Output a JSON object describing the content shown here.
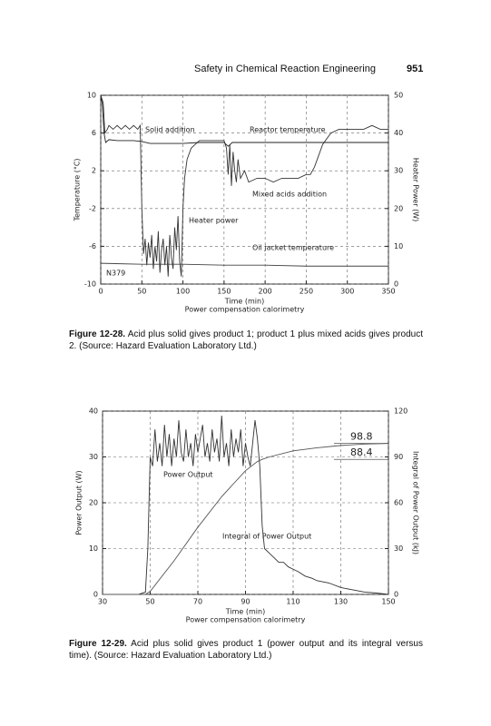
{
  "header": {
    "title": "Safety in Chemical Reaction Engineering",
    "page_number": "951"
  },
  "chart_data": [
    {
      "type": "line",
      "caption": {
        "label": "Figure 12-28.",
        "text": "Acid plus solid gives product 1; product 1 plus mixed acids gives product 2. (Source: Hazard Evaluation Laboratory Ltd.)"
      },
      "x_label": "Time (min)",
      "subtitle": "Power compensation calorimetry",
      "y_label": "Temperature (°C)",
      "y2_label": "Heater Power (W)",
      "xlim": [
        0,
        350
      ],
      "xticks": [
        0,
        50,
        100,
        150,
        200,
        250,
        300,
        350
      ],
      "ylim": [
        -10,
        10
      ],
      "yticks": [
        -10,
        -6,
        -2,
        2,
        6,
        10
      ],
      "y2lim": [
        0,
        50
      ],
      "y2ticks": [
        0,
        10,
        20,
        30,
        40,
        50
      ],
      "grid": true,
      "annotations": [
        "Solid addition",
        "Reactor temperature",
        "Mixed acids addition",
        "Heater power",
        "Oil jacket temperature",
        "N379"
      ],
      "series": [
        {
          "name": "Heater power",
          "axis": "y2",
          "color": "#333333",
          "x": [
            0,
            3,
            5,
            8,
            10,
            15,
            20,
            25,
            30,
            35,
            40,
            45,
            48,
            50,
            52,
            54,
            56,
            58,
            60,
            62,
            64,
            66,
            68,
            70,
            72,
            74,
            76,
            78,
            80,
            82,
            84,
            86,
            88,
            90,
            92,
            94,
            96,
            98,
            100,
            102,
            105,
            110,
            115,
            120,
            130,
            140,
            150,
            153,
            155,
            157,
            159,
            161,
            163,
            165,
            167,
            170,
            175,
            180,
            190,
            200,
            210,
            220,
            230,
            240,
            250,
            255,
            260,
            270,
            280,
            290,
            300,
            310,
            320,
            330,
            340,
            350
          ],
          "values": [
            50,
            48,
            40,
            41,
            42,
            41,
            42,
            41,
            42,
            41,
            42,
            41,
            42,
            20,
            8,
            12,
            5,
            11,
            7,
            13,
            4,
            10,
            6,
            14,
            3,
            9,
            12,
            5,
            10,
            2,
            13,
            7,
            4,
            15,
            9,
            18,
            6,
            2,
            20,
            28,
            33,
            36,
            37,
            38,
            38,
            38,
            38,
            36,
            29,
            37,
            26,
            35,
            30,
            27,
            33,
            28,
            30,
            27,
            28,
            28,
            27,
            28,
            28,
            28,
            29,
            29,
            31,
            37,
            40,
            41,
            41,
            41,
            41,
            42,
            41,
            41
          ]
        },
        {
          "name": "Reactor temperature",
          "axis": "y",
          "color": "#222222",
          "x": [
            0,
            2,
            4,
            6,
            10,
            20,
            30,
            40,
            50,
            60,
            80,
            100,
            120,
            140,
            150,
            155,
            160,
            170,
            180,
            200,
            250,
            300,
            350
          ],
          "values": [
            10,
            9,
            6,
            5,
            5.3,
            5.2,
            5.2,
            5.2,
            5.1,
            4.9,
            4.9,
            4.9,
            5,
            5,
            5,
            4.6,
            5,
            5,
            5,
            5,
            5,
            5,
            5
          ]
        },
        {
          "name": "Oil jacket temperature",
          "axis": "y",
          "color": "#444444",
          "x": [
            0,
            50,
            100,
            150,
            200,
            250,
            300,
            350
          ],
          "values": [
            -7.8,
            -7.9,
            -7.9,
            -8,
            -8,
            -8.1,
            -8.1,
            -8.1
          ]
        }
      ]
    },
    {
      "type": "line",
      "caption": {
        "label": "Figure 12-29.",
        "text": "Acid plus solid gives product 1 (power output and its integral versus time). (Source: Hazard Evaluation Laboratory Ltd.)"
      },
      "x_label": "Time (min)",
      "subtitle": "Power compensation calorimetry",
      "y_label": "Power Output (W)",
      "y2_label": "Integral of Power Output (kJ)",
      "xlim": [
        30,
        150
      ],
      "xticks": [
        30,
        50,
        70,
        90,
        110,
        130,
        150
      ],
      "ylim": [
        0,
        40
      ],
      "yticks": [
        0,
        10,
        20,
        30,
        40
      ],
      "y2lim": [
        0,
        120
      ],
      "y2ticks": [
        0,
        30,
        60,
        90,
        120
      ],
      "grid": true,
      "reference_values": [
        98.8,
        88.4
      ],
      "annotations": [
        "Power Output",
        "Integral of Power Output"
      ],
      "series": [
        {
          "name": "Power Output",
          "axis": "y",
          "color": "#333333",
          "x": [
            30,
            45,
            48,
            49,
            50,
            51,
            52,
            53,
            54,
            55,
            56,
            57,
            58,
            59,
            60,
            61,
            62,
            63,
            64,
            65,
            66,
            67,
            68,
            69,
            70,
            72,
            73,
            74,
            75,
            76,
            77,
            78,
            79,
            80,
            81,
            82,
            83,
            84,
            85,
            86,
            87,
            88,
            89,
            90,
            91,
            92,
            93,
            94,
            95,
            96,
            97,
            98,
            100,
            102,
            104,
            106,
            108,
            110,
            112,
            115,
            118,
            120,
            125,
            130,
            135,
            140,
            145,
            150
          ],
          "values": [
            0,
            0,
            0.5,
            10,
            30,
            28,
            36,
            29,
            33,
            28,
            37,
            30,
            35,
            28,
            34,
            30,
            38,
            31,
            29,
            36,
            30,
            33,
            28,
            35,
            31,
            37,
            30,
            33,
            29,
            36,
            31,
            34,
            29,
            39,
            30,
            33,
            28,
            36,
            30,
            34,
            31,
            36,
            28,
            33,
            30,
            28,
            33,
            38,
            34,
            28,
            15,
            10,
            9,
            8,
            7,
            7,
            6,
            5.5,
            5,
            4,
            3.5,
            3,
            2.5,
            1.5,
            1,
            0.5,
            0.3,
            0
          ]
        },
        {
          "name": "Integral of Power Output",
          "axis": "y2",
          "color": "#555555",
          "x": [
            30,
            48,
            50,
            60,
            70,
            80,
            90,
            95,
            97,
            100,
            110,
            120,
            130,
            140,
            150
          ],
          "values": [
            0,
            0,
            2,
            22,
            44,
            64,
            81,
            87,
            88.4,
            90,
            94,
            96,
            97.5,
            98.4,
            98.8
          ]
        }
      ]
    }
  ]
}
